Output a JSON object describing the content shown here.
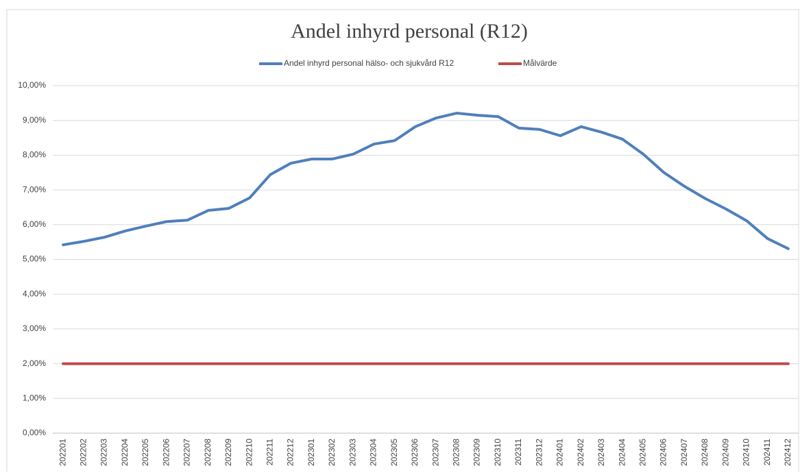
{
  "chart_data": {
    "type": "line",
    "title": "Andel inhyrd personal (R12)",
    "categories": [
      "202201",
      "202202",
      "202203",
      "202204",
      "202205",
      "202206",
      "202207",
      "202208",
      "202209",
      "202210",
      "202211",
      "202212",
      "202301",
      "202302",
      "202303",
      "202304",
      "202305",
      "202306",
      "202307",
      "202308",
      "202309",
      "202310",
      "202311",
      "202312",
      "202401",
      "202402",
      "202403",
      "202404",
      "202405",
      "202406",
      "202407",
      "202408",
      "202409",
      "202410",
      "202411",
      "202412"
    ],
    "series": [
      {
        "name": "Andel inhyrd personal hälso- och sjukvård R12",
        "color": "#4f7fbc",
        "values": [
          5.42,
          5.52,
          5.64,
          5.82,
          5.96,
          6.09,
          6.13,
          6.41,
          6.47,
          6.77,
          7.44,
          7.77,
          7.89,
          7.89,
          8.03,
          8.32,
          8.42,
          8.82,
          9.07,
          9.21,
          9.15,
          9.11,
          8.78,
          8.74,
          8.56,
          8.82,
          8.66,
          8.46,
          8.03,
          7.5,
          7.1,
          6.75,
          6.45,
          6.11,
          5.6,
          5.31
        ]
      },
      {
        "name": "Målvärde",
        "color": "#be4b48",
        "values": [
          2,
          2,
          2,
          2,
          2,
          2,
          2,
          2,
          2,
          2,
          2,
          2,
          2,
          2,
          2,
          2,
          2,
          2,
          2,
          2,
          2,
          2,
          2,
          2,
          2,
          2,
          2,
          2,
          2,
          2,
          2,
          2,
          2,
          2,
          2,
          2
        ]
      }
    ],
    "ylim": [
      0,
      10
    ],
    "yticks": [
      {
        "value": 0,
        "label": "0,00%"
      },
      {
        "value": 1,
        "label": "1,00%"
      },
      {
        "value": 2,
        "label": "2,00%"
      },
      {
        "value": 3,
        "label": "3,00%"
      },
      {
        "value": 4,
        "label": "4,00%"
      },
      {
        "value": 5,
        "label": "5,00%"
      },
      {
        "value": 6,
        "label": "6,00%"
      },
      {
        "value": 7,
        "label": "7,00%"
      },
      {
        "value": 8,
        "label": "8,00%"
      },
      {
        "value": 9,
        "label": "9,00%"
      },
      {
        "value": 10,
        "label": "10,00%"
      }
    ],
    "grid": true,
    "legend": "top"
  }
}
